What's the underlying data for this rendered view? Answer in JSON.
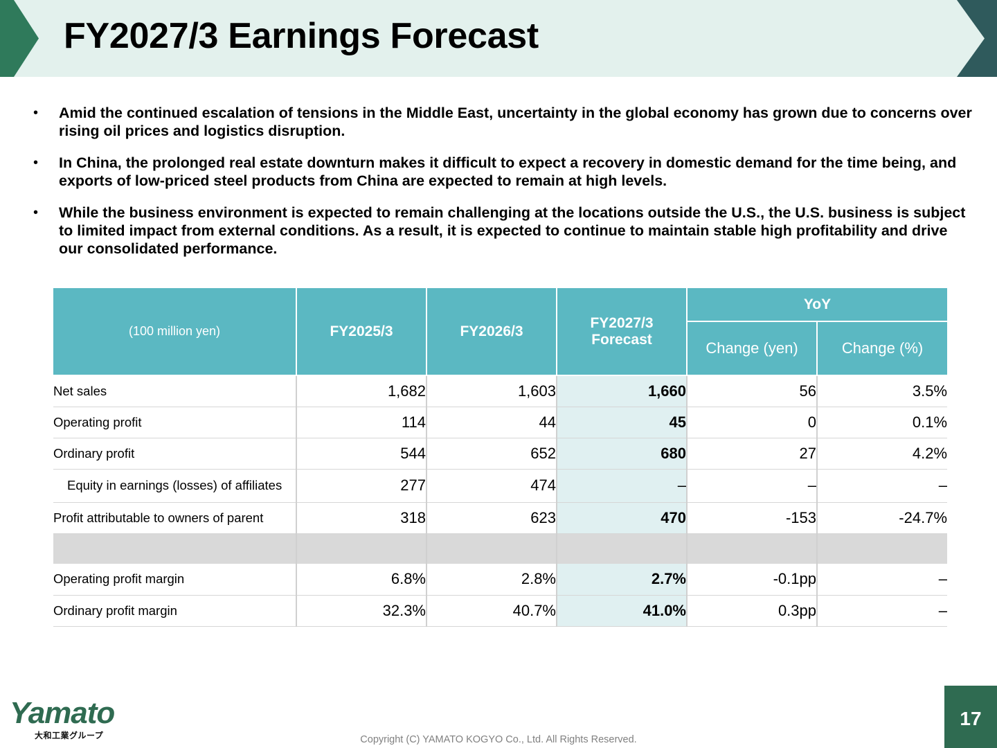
{
  "header": {
    "title": "FY2027/3 Earnings Forecast",
    "colors": {
      "band": "#e3f1ed",
      "left_chevron": "#2f7a5b",
      "right_chevron": "#2f5a5c"
    }
  },
  "bullets": [
    "Amid the continued escalation of tensions in the Middle East, uncertainty in the global economy has grown due to concerns over rising oil prices and logistics disruption.",
    "In China, the prolonged real estate downturn makes it difficult to expect a recovery in domestic demand for the time being, and exports of low-priced steel products from China are expected to remain at high levels.",
    "While the business environment is expected to remain challenging at the locations outside the U.S., the U.S. business is subject to limited impact from external conditions. As a result, it is expected to continue to maintain stable high profitability and drive our consolidated performance."
  ],
  "bullet_symbol": "•",
  "table": {
    "unit_label": "(100 million yen)",
    "col_fy2025": "FY2025/3",
    "col_fy2026": "FY2026/3",
    "col_forecast_line1": "FY2027/3",
    "col_forecast_line2": "Forecast",
    "col_yoy": "YoY",
    "col_change_yen": "Change (yen)",
    "col_change_pct": "Change (%)",
    "rows": [
      {
        "label": "Net sales",
        "fy2025": "1,682",
        "fy2026": "1,603",
        "forecast": "1,660",
        "change_yen": "56",
        "change_pct": "3.5%"
      },
      {
        "label": "Operating profit",
        "fy2025": "114",
        "fy2026": "44",
        "forecast": "45",
        "change_yen": "0",
        "change_pct": "0.1%"
      },
      {
        "label": "Ordinary profit",
        "fy2025": "544",
        "fy2026": "652",
        "forecast": "680",
        "change_yen": "27",
        "change_pct": "4.2%"
      },
      {
        "label": "Equity in earnings (losses) of affiliates",
        "fy2025": "277",
        "fy2026": "474",
        "forecast": "–",
        "change_yen": "–",
        "change_pct": "–"
      },
      {
        "label": "Profit attributable to owners of parent",
        "fy2025": "318",
        "fy2026": "623",
        "forecast": "470",
        "change_yen": "-153",
        "change_pct": "-24.7%"
      }
    ],
    "margin_rows": [
      {
        "label": "Operating profit margin",
        "fy2025": "6.8%",
        "fy2026": "2.8%",
        "forecast": "2.7%",
        "change_yen": "-0.1pp",
        "change_pct": "–"
      },
      {
        "label": "Ordinary profit margin",
        "fy2025": "32.3%",
        "fy2026": "40.7%",
        "forecast": "41.0%",
        "change_yen": "0.3pp",
        "change_pct": "–"
      }
    ],
    "colors": {
      "header": "#5bb8c2",
      "forecast_cell": "#e0f0f1",
      "spacer": "#d9d9d9"
    }
  },
  "footer": {
    "logo_text": "Yamato",
    "logo_subtitle": "大和工業グループ",
    "copyright": "Copyright (C) YAMATO KOGYO Co., Ltd. All Rights Reserved.",
    "page_number": "17",
    "colors": {
      "logo": "#2f6b51",
      "page_badge": "#2f6b51"
    }
  }
}
